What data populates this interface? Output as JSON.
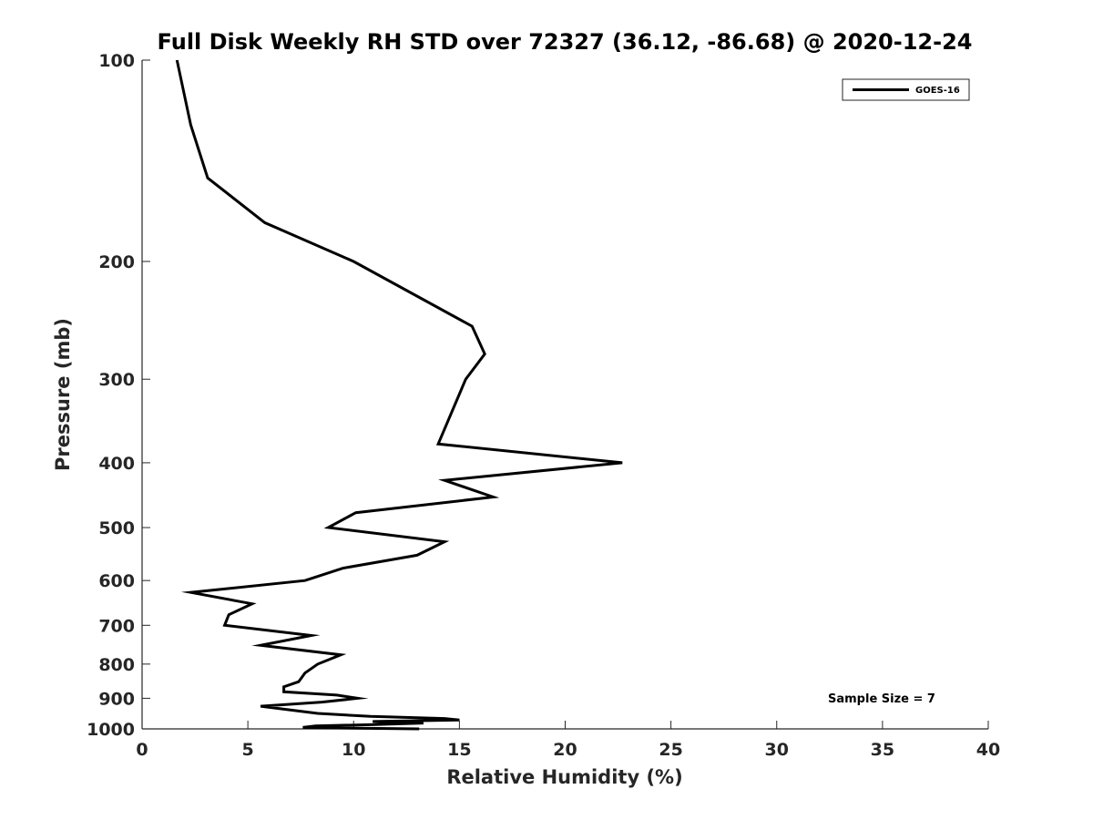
{
  "chart_data": {
    "type": "line",
    "title": "Full Disk Weekly RH STD over 72327 (36.12, -86.68) @ 2020-12-24",
    "xlabel": "Relative Humidity (%)",
    "ylabel": "Pressure (mb)",
    "xlim": [
      0,
      40
    ],
    "ylim": [
      100,
      1000
    ],
    "yscale": "log",
    "y_reversed": true,
    "grid": false,
    "legend_position": "top-right",
    "x_ticks": [
      0,
      5,
      10,
      15,
      20,
      25,
      30,
      35,
      40
    ],
    "y_ticks": [
      100,
      200,
      300,
      400,
      500,
      600,
      700,
      800,
      900,
      1000
    ],
    "series": [
      {
        "name": "GOES-16",
        "color": "#000000",
        "points": [
          [
            1.65,
            100
          ],
          [
            2.3,
            125
          ],
          [
            3.1,
            150
          ],
          [
            5.8,
            175
          ],
          [
            10.0,
            200
          ],
          [
            15.6,
            250
          ],
          [
            16.2,
            275
          ],
          [
            15.3,
            300
          ],
          [
            14.0,
            375
          ],
          [
            22.7,
            400
          ],
          [
            14.3,
            425
          ],
          [
            16.6,
            450
          ],
          [
            10.1,
            475
          ],
          [
            8.8,
            500
          ],
          [
            14.3,
            525
          ],
          [
            13.0,
            550
          ],
          [
            9.5,
            575
          ],
          [
            7.7,
            600
          ],
          [
            2.3,
            625
          ],
          [
            5.2,
            650
          ],
          [
            4.1,
            675
          ],
          [
            3.9,
            700
          ],
          [
            8.0,
            725
          ],
          [
            5.6,
            750
          ],
          [
            9.4,
            775
          ],
          [
            8.3,
            800
          ],
          [
            7.7,
            825
          ],
          [
            7.4,
            850
          ],
          [
            6.7,
            865
          ],
          [
            6.7,
            880
          ],
          [
            9.2,
            890
          ],
          [
            10.2,
            900
          ],
          [
            8.5,
            912
          ],
          [
            5.6,
            925
          ],
          [
            6.8,
            935
          ],
          [
            8.3,
            948
          ],
          [
            10.8,
            958
          ],
          [
            14.3,
            965
          ],
          [
            15.0,
            970
          ],
          [
            10.9,
            975
          ],
          [
            13.3,
            980
          ],
          [
            11.0,
            985
          ],
          [
            8.2,
            990
          ],
          [
            7.6,
            995
          ],
          [
            9.3,
            997
          ],
          [
            13.1,
            1000
          ]
        ]
      }
    ],
    "annotation": "Sample Size = 7"
  }
}
